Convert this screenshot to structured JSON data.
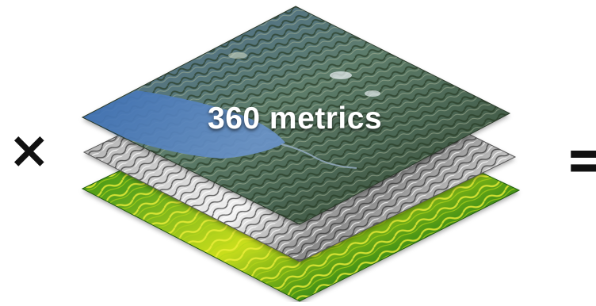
{
  "operators": {
    "multiply": "×",
    "equals": "="
  },
  "center_layer_label": "360 metrics",
  "layers": [
    {
      "name": "vegetation-index-layer",
      "colors": [
        "#2f7a14",
        "#7fb51c",
        "#d9e61a",
        "#f2f23a"
      ]
    },
    {
      "name": "hillshade-layer",
      "colors": [
        "#3a3a3a",
        "#9a9a9a",
        "#e8e8e8"
      ]
    },
    {
      "name": "aerial-imagery-layer",
      "colors": [
        "#3e5a8e",
        "#5a7fb6",
        "#2f4a2c",
        "#8aa07a"
      ]
    }
  ]
}
